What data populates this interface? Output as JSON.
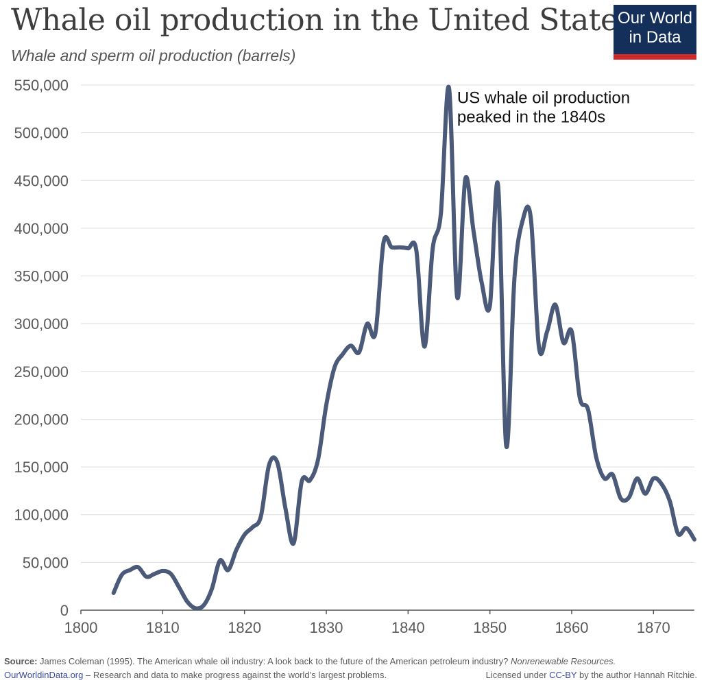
{
  "header": {
    "title": "Whale oil production in the United States",
    "subtitle": "Whale and sperm oil production (barrels)",
    "logo_line1": "Our World",
    "logo_line2": "in Data"
  },
  "chart_data": {
    "type": "line",
    "title": "Whale oil production in the United States",
    "subtitle": "Whale and sperm oil production (barrels)",
    "xlabel": "",
    "ylabel": "",
    "xlim": [
      1800,
      1875
    ],
    "ylim": [
      0,
      550000
    ],
    "grid": "horizontal",
    "x_ticks": [
      1800,
      1810,
      1820,
      1830,
      1840,
      1850,
      1860,
      1870
    ],
    "x_tick_labels": [
      "1800",
      "1810",
      "1820",
      "1830",
      "1840",
      "1850",
      "1860",
      "1870"
    ],
    "y_ticks": [
      0,
      50000,
      100000,
      150000,
      200000,
      250000,
      300000,
      350000,
      400000,
      450000,
      500000,
      550000
    ],
    "y_tick_labels": [
      "0",
      "50,000",
      "100,000",
      "150,000",
      "200,000",
      "250,000",
      "300,000",
      "350,000",
      "400,000",
      "450,000",
      "500,000",
      "550,000"
    ],
    "series": [
      {
        "color": "#4a5a78",
        "x": [
          1804,
          1805,
          1806,
          1807,
          1808,
          1809,
          1810,
          1811,
          1812,
          1813,
          1814,
          1815,
          1816,
          1817,
          1818,
          1819,
          1820,
          1821,
          1822,
          1823,
          1824,
          1825,
          1826,
          1827,
          1828,
          1829,
          1830,
          1831,
          1832,
          1833,
          1834,
          1835,
          1836,
          1837,
          1838,
          1839,
          1840,
          1841,
          1842,
          1843,
          1844,
          1845,
          1846,
          1847,
          1848,
          1849,
          1850,
          1851,
          1852,
          1853,
          1854,
          1855,
          1856,
          1857,
          1858,
          1859,
          1860,
          1861,
          1862,
          1863,
          1864,
          1865,
          1866,
          1867,
          1868,
          1869,
          1870,
          1871,
          1872,
          1873,
          1874,
          1875
        ],
        "y": [
          18000,
          37000,
          42000,
          45000,
          35000,
          38000,
          41000,
          38000,
          24000,
          9000,
          2000,
          5000,
          22000,
          52000,
          42000,
          63000,
          79000,
          87000,
          98000,
          152000,
          155000,
          107000,
          70000,
          135000,
          136000,
          158000,
          215000,
          254000,
          268000,
          277000,
          270000,
          300000,
          290000,
          385000,
          380000,
          380000,
          379000,
          377000,
          276000,
          378000,
          415000,
          547000,
          328000,
          452000,
          397000,
          343000,
          319000,
          445000,
          172000,
          348000,
          408000,
          411000,
          275000,
          292000,
          320000,
          280000,
          292000,
          222000,
          210000,
          160000,
          138000,
          142000,
          117000,
          118000,
          138000,
          122000,
          138000,
          132000,
          114000,
          80000,
          86000,
          74000
        ]
      }
    ],
    "annotations": [
      {
        "text_line1": "US whale oil production",
        "text_line2": "peaked in the 1840s",
        "x": 1846,
        "y": 531000
      }
    ]
  },
  "footer": {
    "source_label": "Source:",
    "source_text": "James Coleman (1995). The American whale oil industry: A look back to the future of the American petroleum industry?",
    "source_journal": "Nonrenewable Resources.",
    "site": "OurWorldinData.org",
    "tagline": "– Research and data to make progress against the world’s largest problems.",
    "license_prefix": "Licensed under",
    "license_link": "CC-BY",
    "license_suffix": "by the author Hannah Ritchie."
  }
}
